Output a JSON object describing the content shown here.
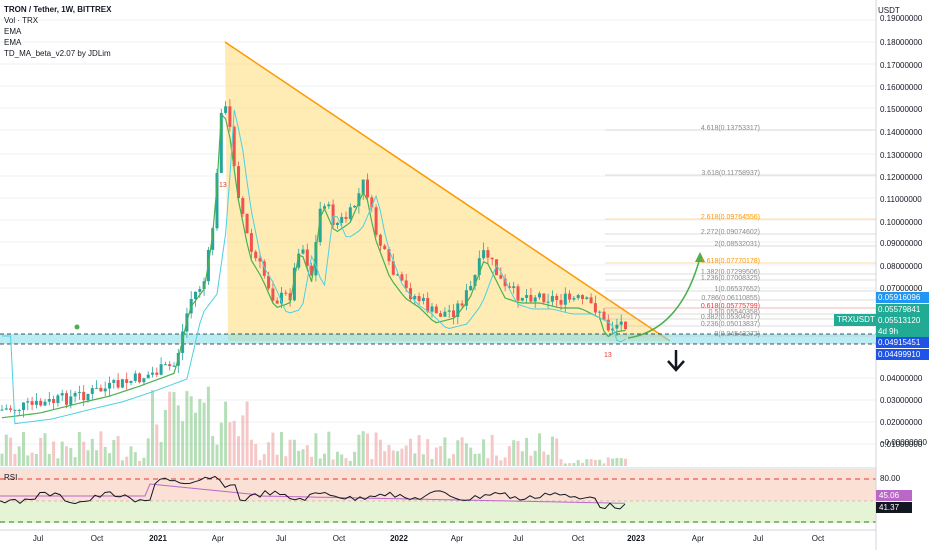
{
  "legend": {
    "title": "TRON / Tether, 1W, BITTREX",
    "volume": "Vol · TRX",
    "ema1": "EMA",
    "ema2": "EMA",
    "indicator": "TD_MA_beta_v2.07 by JDLim"
  },
  "price_axis": {
    "unit": "USDT",
    "ticks": [
      "0.19000000",
      "0.18000000",
      "0.17000000",
      "0.16000000",
      "0.15000000",
      "0.14000000",
      "0.13000000",
      "0.12000000",
      "0.11000000",
      "0.10000000",
      "0.09000000",
      "0.08000000",
      "0.07000000",
      "0.04000000",
      "0.03000000",
      "0.02000000",
      "0.01000000",
      "−0.00000000"
    ]
  },
  "price_tags": {
    "t1": "0.05916096",
    "t2": "0.05579841",
    "t3": "0.05513120",
    "t4": "4d 9h",
    "t5": "0.04915451",
    "t6": "0.04499910",
    "symbol": "TRXUSDT"
  },
  "fibs": [
    {
      "label": "4.618(0.13753317)",
      "color": "#8a8a8a"
    },
    {
      "label": "3.618(0.11758937)",
      "color": "#8a8a8a"
    },
    {
      "label": "2.618(0.09764556)",
      "color": "#ff9800"
    },
    {
      "label": "2.272(0.09074602)",
      "color": "#8a8a8a"
    },
    {
      "label": "2(0.08532031)",
      "color": "#8a8a8a"
    },
    {
      "label": "1.618(0.07770178)",
      "color": "#ff9800"
    },
    {
      "label": "1.382(0.07299506)",
      "color": "#8a8a8a"
    },
    {
      "label": "1.236(0.07008325)",
      "color": "#8a8a8a"
    },
    {
      "label": "1(0.06537652)",
      "color": "#8a8a8a"
    },
    {
      "label": "0.786(0.06110855)",
      "color": "#8a8a8a"
    },
    {
      "label": "0.618(0.05775799)",
      "color": "#e53935"
    },
    {
      "label": "0.5(0.05540358)",
      "color": "#8a8a8a"
    },
    {
      "label": "0.382(0.05304917)",
      "color": "#8a8a8a"
    },
    {
      "label": "0.236(0.05013837)",
      "color": "#8a8a8a"
    },
    {
      "label": "0(0.04543272)",
      "color": "#8a8a8a"
    }
  ],
  "annotations": {
    "td13a": "13",
    "td13b": "13",
    "td13c": "13",
    "td13d": "13"
  },
  "time_axis": {
    "ticks": [
      {
        "label": "Jul",
        "year": false
      },
      {
        "label": "Oct",
        "year": false
      },
      {
        "label": "2021",
        "year": true
      },
      {
        "label": "Apr",
        "year": false
      },
      {
        "label": "Jul",
        "year": false
      },
      {
        "label": "Oct",
        "year": false
      },
      {
        "label": "2022",
        "year": true
      },
      {
        "label": "Apr",
        "year": false
      },
      {
        "label": "Jul",
        "year": false
      },
      {
        "label": "Oct",
        "year": false
      },
      {
        "label": "2023",
        "year": true
      },
      {
        "label": "Apr",
        "year": false
      },
      {
        "label": "Jul",
        "year": false
      },
      {
        "label": "Oct",
        "year": false
      }
    ]
  },
  "rsi": {
    "label": "RSI",
    "top": "80.00",
    "v1": "45.06",
    "v2": "41.37"
  },
  "colors": {
    "up": "#26a69a",
    "down": "#ef5350",
    "triangle": "#ffd54f",
    "support": "#80deea",
    "td_line": "#4caf50",
    "arrow_up": "#4caf50",
    "arrow_down": "#131722"
  }
}
